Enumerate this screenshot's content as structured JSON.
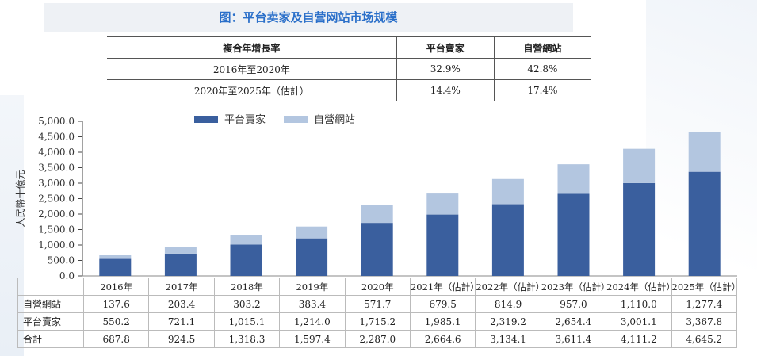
{
  "title": "图：平台卖家及自营网站市场规模",
  "cagr_table": {
    "headers": [
      "複合年增長率",
      "平台賣家",
      "自營網站"
    ],
    "rows": [
      [
        "2016年至2020年",
        "32.9%",
        "42.8%"
      ],
      [
        "2020年至2025年（估計）",
        "14.4%",
        "17.4%"
      ]
    ]
  },
  "colors": {
    "platform": "#3a5f9e",
    "selfsite": "#b3c6e0",
    "title": "#2a6fc9"
  },
  "chart_data": {
    "type": "bar",
    "stacked": true,
    "categories": [
      "2016年",
      "2017年",
      "2018年",
      "2019年",
      "2020年",
      "2021年（估計）",
      "2022年（估計）",
      "2023年（估計）",
      "2024年（估計）",
      "2025年（估計）"
    ],
    "series": [
      {
        "name": "平台賣家",
        "values": [
          550.2,
          721.1,
          1015.1,
          1214.0,
          1715.2,
          1985.1,
          2319.2,
          2654.4,
          3001.1,
          3367.8
        ]
      },
      {
        "name": "自營網站",
        "values": [
          137.6,
          203.4,
          303.2,
          383.4,
          571.7,
          679.5,
          814.9,
          957.0,
          1110.0,
          1277.4
        ]
      }
    ],
    "ylabel": "人民幣十億元",
    "ylim": [
      0,
      5000
    ],
    "yticks": [
      "0.0",
      "500.0",
      "1,000.0",
      "1,500.0",
      "2,000.0",
      "2,500.0",
      "3,000.0",
      "3,500.0",
      "4,000.0",
      "4,500.0",
      "5,000.0"
    ],
    "legend_position": "top"
  },
  "data_table": {
    "rows": [
      {
        "label": "自營網站",
        "values": [
          "137.6",
          "203.4",
          "303.2",
          "383.4",
          "571.7",
          "679.5",
          "814.9",
          "957.0",
          "1,110.0",
          "1,277.4"
        ]
      },
      {
        "label": "平台賣家",
        "values": [
          "550.2",
          "721.1",
          "1,015.1",
          "1,214.0",
          "1,715.2",
          "1,985.1",
          "2,319.2",
          "2,654.4",
          "3,001.1",
          "3,367.8"
        ]
      },
      {
        "label": "合計",
        "values": [
          "687.8",
          "924.5",
          "1,318.3",
          "1,597.4",
          "2,287.0",
          "2,664.6",
          "3,134.1",
          "3,611.4",
          "4,111.2",
          "4,645.2"
        ]
      }
    ]
  }
}
